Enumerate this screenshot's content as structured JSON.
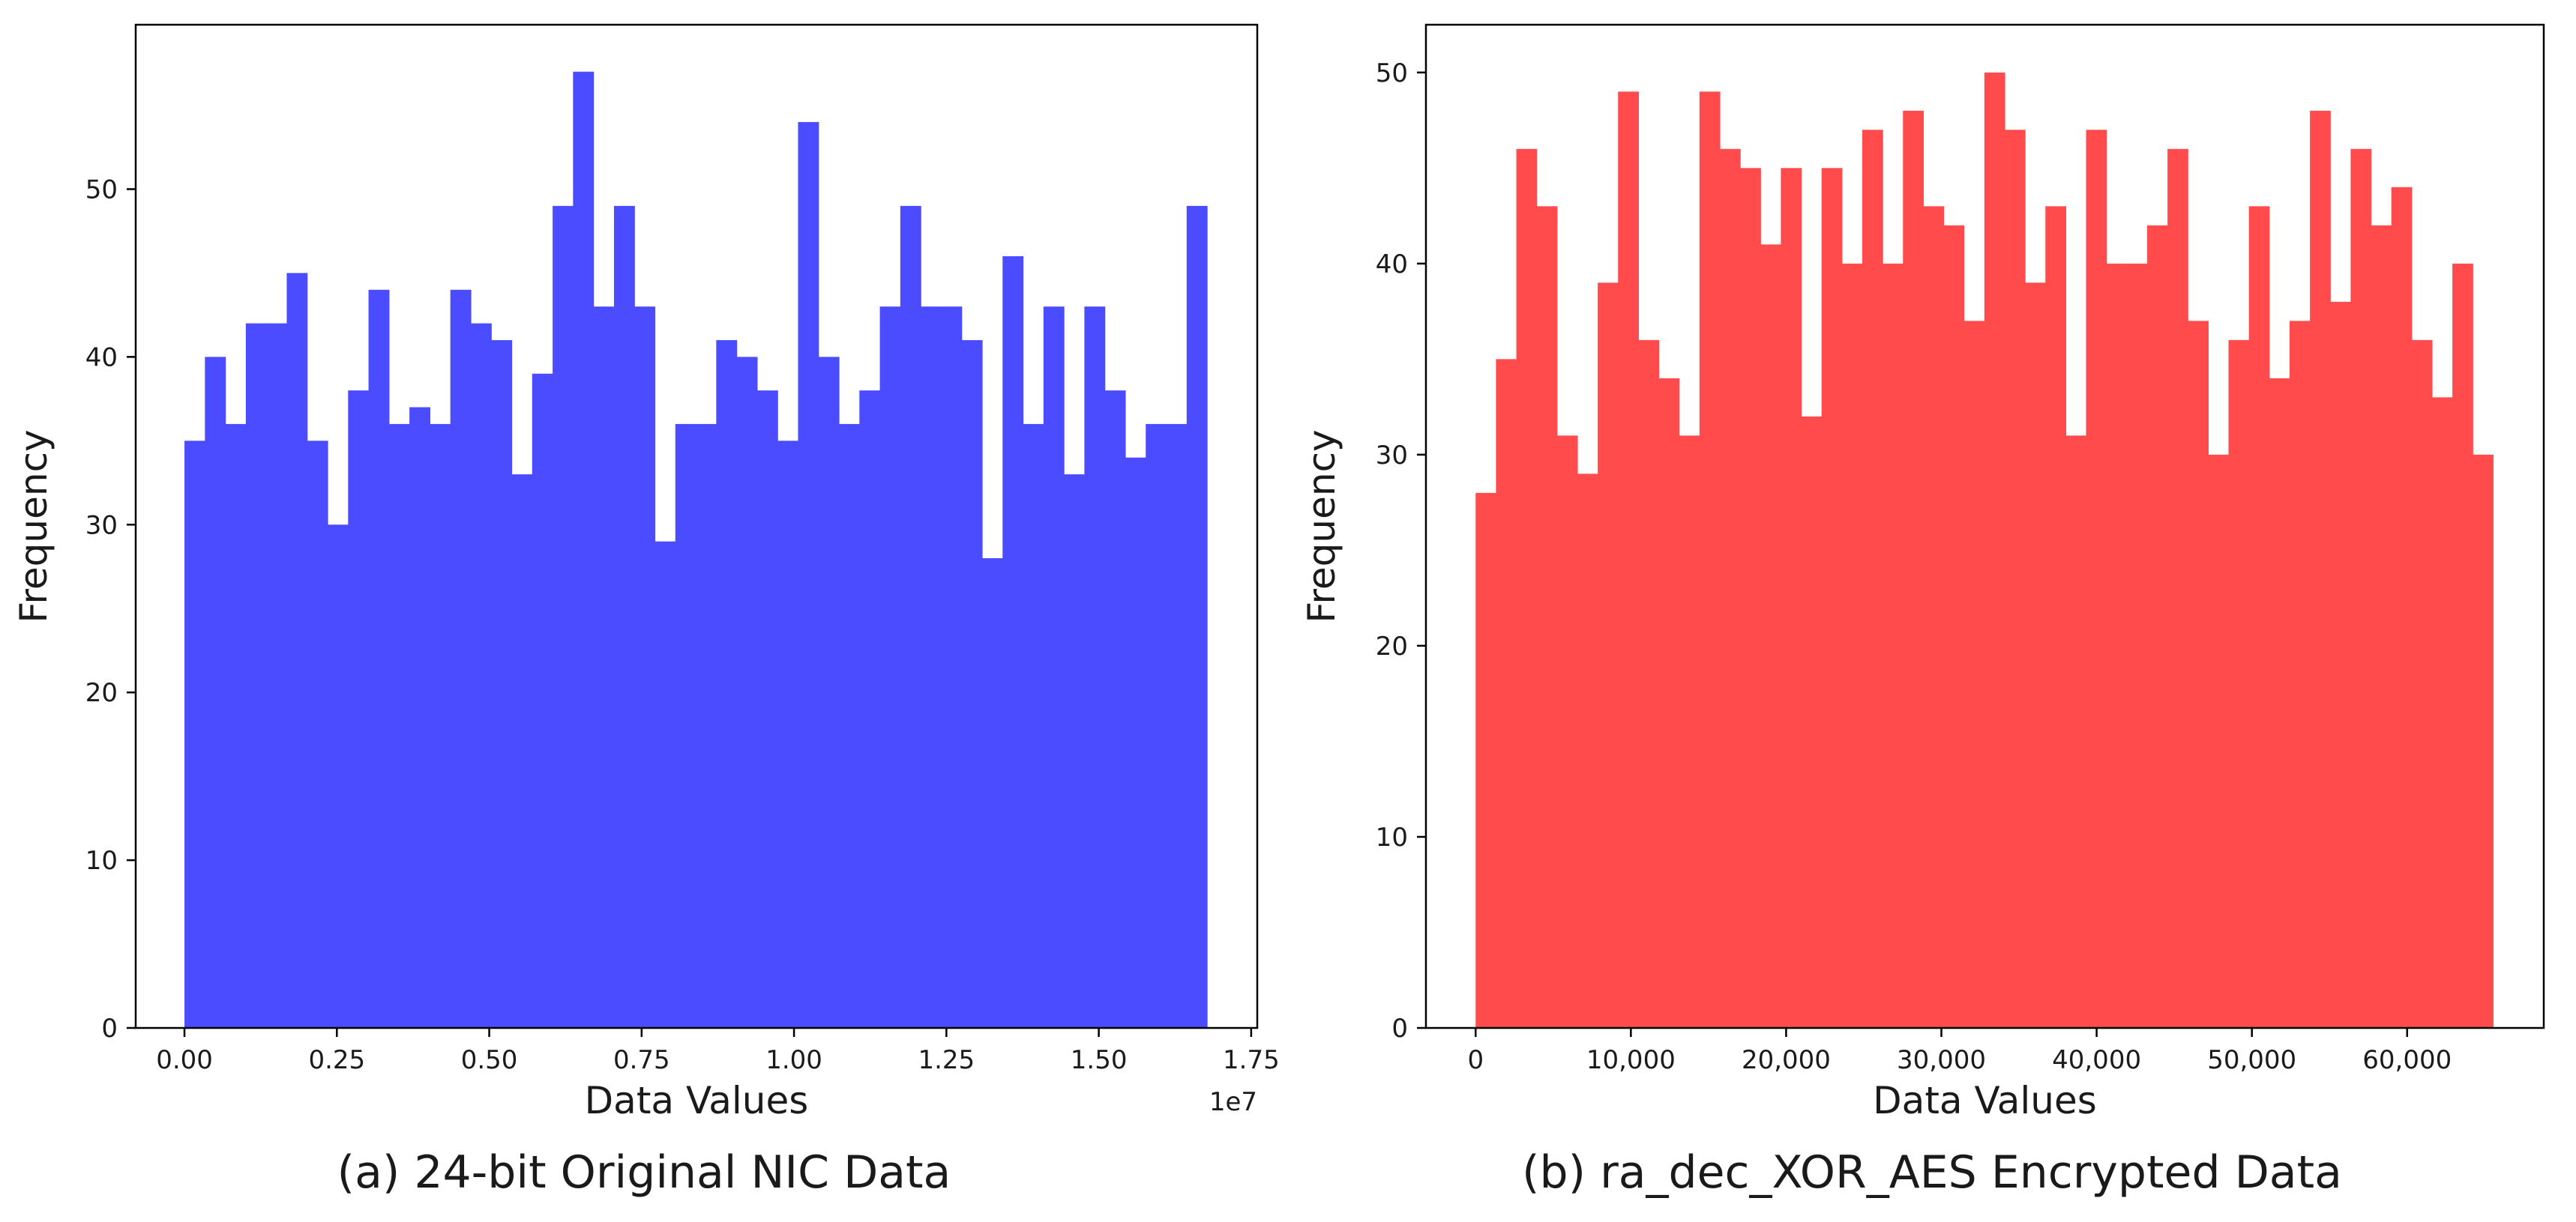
{
  "chart_data": [
    {
      "type": "bar",
      "subtype": "histogram",
      "caption": "(a) 24-bit Original NIC Data",
      "xlabel": "Data Values",
      "ylabel": "Frequency",
      "x_offset_label": "1e7",
      "color": "#4b4bff",
      "xlim": [
        -0.08,
        1.76
      ],
      "ylim": [
        0,
        59.8
      ],
      "x_range": [
        0,
        1.6777
      ],
      "xticks": [
        0.0,
        0.25,
        0.5,
        0.75,
        1.0,
        1.25,
        1.5,
        1.75
      ],
      "xtick_labels": [
        "0.00",
        "0.25",
        "0.50",
        "0.75",
        "1.00",
        "1.25",
        "1.50",
        "1.75"
      ],
      "yticks": [
        0,
        10,
        20,
        30,
        40,
        50
      ],
      "ytick_labels": [
        "0",
        "10",
        "20",
        "30",
        "40",
        "50"
      ],
      "values": [
        35,
        40,
        36,
        42,
        42,
        45,
        35,
        30,
        38,
        44,
        36,
        37,
        36,
        44,
        42,
        41,
        33,
        39,
        49,
        57,
        43,
        49,
        43,
        29,
        36,
        36,
        41,
        40,
        38,
        35,
        54,
        40,
        36,
        38,
        43,
        49,
        43,
        43,
        41,
        28,
        46,
        36,
        43,
        33,
        43,
        38,
        34,
        36,
        36,
        49
      ]
    },
    {
      "type": "bar",
      "subtype": "histogram",
      "caption": "(b) ra_dec_XOR_AES Encrypted Data",
      "xlabel": "Data Values",
      "ylabel": "Frequency",
      "x_offset_label": "",
      "color": "#ff4b4b",
      "xlim": [
        -3200,
        68800
      ],
      "ylim": [
        0,
        52.5
      ],
      "x_range": [
        0,
        65535
      ],
      "xticks": [
        0,
        10000,
        20000,
        30000,
        40000,
        50000,
        60000
      ],
      "xtick_labels": [
        "0",
        "10,000",
        "20,000",
        "30,000",
        "40,000",
        "50,000",
        "60,000"
      ],
      "yticks": [
        0,
        10,
        20,
        30,
        40,
        50
      ],
      "ytick_labels": [
        "0",
        "10",
        "20",
        "30",
        "40",
        "50"
      ],
      "values": [
        28,
        35,
        46,
        43,
        31,
        29,
        39,
        49,
        36,
        34,
        31,
        49,
        46,
        45,
        41,
        45,
        32,
        45,
        40,
        47,
        40,
        48,
        43,
        42,
        37,
        50,
        47,
        39,
        43,
        31,
        47,
        40,
        40,
        42,
        46,
        37,
        30,
        36,
        43,
        34,
        37,
        48,
        38,
        46,
        42,
        44,
        36,
        33,
        40,
        30
      ]
    }
  ]
}
